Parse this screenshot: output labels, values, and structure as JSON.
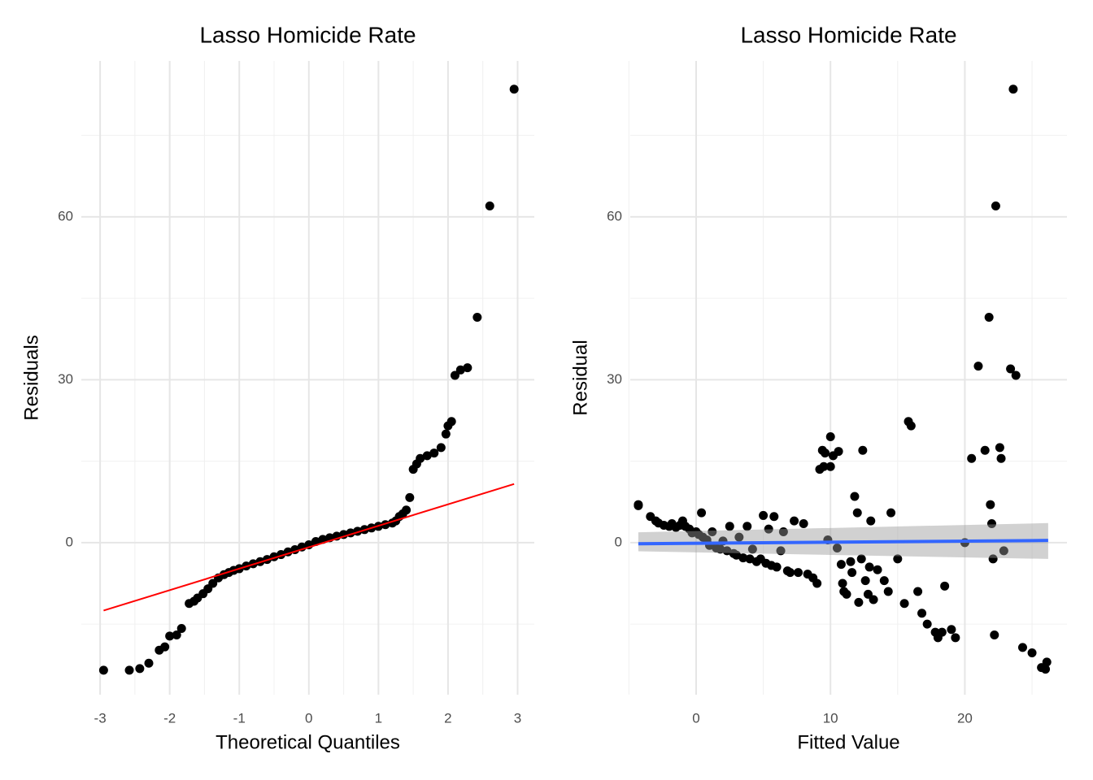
{
  "chart_data": [
    {
      "type": "scatter",
      "title": "Lasso Homicide Rate",
      "x_label": "Theoretical Quantiles",
      "y_label": "Residuals",
      "xlim": [
        -3.27,
        3.24
      ],
      "ylim": [
        -28,
        88.7
      ],
      "xticks": [
        -3,
        -2,
        -1,
        0,
        1,
        2,
        3
      ],
      "yticks": [
        0,
        30,
        60
      ],
      "xminor": [
        -2.5,
        -1.5,
        -0.5,
        0.5,
        1.5,
        2.5
      ],
      "yminor": [
        -15,
        15,
        45,
        75
      ],
      "grid": true,
      "points": {
        "color": "#000000",
        "x": [
          -2.95,
          -2.58,
          -2.43,
          -2.3,
          -2.15,
          -2.07,
          -2.0,
          -1.9,
          -1.83,
          -1.72,
          -1.65,
          -1.6,
          -1.52,
          -1.45,
          -1.38,
          -1.3,
          -1.22,
          -1.15,
          -1.08,
          -1.0,
          -0.9,
          -0.8,
          -0.7,
          -0.6,
          -0.5,
          -0.4,
          -0.3,
          -0.2,
          -0.1,
          0.0,
          0.1,
          0.2,
          0.3,
          0.4,
          0.5,
          0.6,
          0.7,
          0.8,
          0.9,
          1.0,
          1.1,
          1.2,
          1.25,
          1.3,
          1.35,
          1.4,
          1.45,
          1.5,
          1.55,
          1.6,
          1.7,
          1.8,
          1.9,
          1.97,
          2.0,
          2.05,
          2.1,
          2.18,
          2.28,
          2.42,
          2.6,
          2.95
        ],
        "values": [
          -23.5,
          -23.5,
          -23.2,
          -22.2,
          -19.8,
          -19.2,
          -17.2,
          -17.0,
          -15.8,
          -11.2,
          -10.8,
          -10.2,
          -9.4,
          -8.5,
          -7.5,
          -6.5,
          -5.9,
          -5.5,
          -5.1,
          -4.8,
          -4.3,
          -3.9,
          -3.5,
          -3.1,
          -2.6,
          -2.2,
          -1.7,
          -1.3,
          -0.8,
          -0.4,
          0.2,
          0.6,
          0.9,
          1.2,
          1.5,
          1.8,
          2.1,
          2.4,
          2.7,
          3.0,
          3.3,
          3.6,
          4.0,
          4.8,
          5.3,
          6.0,
          8.3,
          13.5,
          14.5,
          15.5,
          16.0,
          16.5,
          17.5,
          20.0,
          21.5,
          22.3,
          30.8,
          31.8,
          32.2,
          41.5,
          62.0,
          83.5
        ]
      },
      "line": {
        "color": "#ff0000",
        "x": [
          -2.95,
          2.95
        ],
        "values": [
          -12.5,
          10.8
        ]
      }
    },
    {
      "type": "scatter",
      "title": "Lasso Homicide Rate",
      "x_label": "Fitted Value",
      "y_label": "Residual",
      "xlim": [
        -4.9,
        27.6
      ],
      "ylim": [
        -28,
        88.7
      ],
      "xticks": [
        0,
        10,
        20
      ],
      "yticks": [
        0,
        30,
        60
      ],
      "xminor": [
        -5,
        5,
        15,
        25
      ],
      "yminor": [
        -15,
        15,
        45,
        75
      ],
      "grid": true,
      "points": {
        "color": "#000000",
        "x": [
          -4.3,
          -4.3,
          -3.4,
          -3,
          -2.8,
          -2.4,
          -2,
          -1.8,
          -1.5,
          -1.2,
          -1,
          -0.8,
          -0.5,
          -0.3,
          0,
          0.2,
          0.4,
          0.5,
          0.8,
          1,
          1.2,
          1.5,
          1.8,
          2,
          2.3,
          2.5,
          2.8,
          3,
          3.2,
          3.5,
          3.8,
          4,
          4.2,
          4.5,
          4.8,
          5,
          5.2,
          5.4,
          5.6,
          5.8,
          6,
          6.3,
          6.5,
          6.8,
          7,
          7.3,
          7.6,
          8,
          8.3,
          8.7,
          9,
          9.2,
          9.4,
          9.5,
          9.6,
          9.8,
          10,
          10,
          10.2,
          10.5,
          10.6,
          10.8,
          10.9,
          11,
          11.2,
          11.5,
          11.6,
          11.8,
          12,
          12.1,
          12.3,
          12.4,
          12.6,
          12.8,
          12.9,
          13,
          13.2,
          13.5,
          14,
          14.3,
          14.5,
          15,
          15.5,
          15.8,
          16,
          16.5,
          16.8,
          17.2,
          17.8,
          18,
          18.3,
          18.5,
          19,
          19.3,
          20,
          20.5,
          21,
          21.5,
          21.8,
          21.9,
          22,
          22.1,
          22.2,
          22.3,
          22.6,
          22.7,
          22.9,
          23.4,
          23.6,
          23.8,
          24.3,
          25,
          25.7,
          26,
          26.1
        ],
        "values": [
          6.8,
          7,
          4.8,
          4,
          3.6,
          3.2,
          3,
          3.5,
          2.8,
          3.2,
          4,
          3,
          2.5,
          1.8,
          2,
          1.5,
          5.5,
          1,
          0.5,
          -0.5,
          2,
          -1,
          -1.2,
          0.3,
          -1.5,
          3,
          -2,
          -2.3,
          1,
          -2.8,
          3,
          -3,
          -1.2,
          -3.5,
          -3,
          5,
          -3.8,
          2.5,
          -4.2,
          4.8,
          -4.5,
          -1.5,
          2,
          -5.2,
          -5.5,
          4,
          -5.5,
          3.5,
          -5.8,
          -6.5,
          -7.5,
          13.5,
          17,
          14,
          16.5,
          0.5,
          14,
          19.5,
          16,
          -1,
          16.8,
          -4,
          -7.5,
          -9,
          -9.5,
          -3.5,
          -5.5,
          8.5,
          5.5,
          -11,
          -3,
          17,
          -7,
          -9.5,
          -4.5,
          4,
          -10.5,
          -5,
          -7,
          -9,
          5.5,
          -3,
          -11.2,
          22.3,
          21.5,
          -9,
          -13,
          -15,
          -16.5,
          -17.5,
          -16.5,
          -8,
          -16,
          -17.5,
          0,
          15.5,
          32.5,
          17,
          41.5,
          7,
          3.5,
          -3,
          -17,
          62,
          17.5,
          15.5,
          -1.5,
          32,
          83.5,
          30.8,
          -19.3,
          -20.3,
          -23,
          -23.3,
          -22
        ]
      },
      "band": {
        "color": "#999999",
        "x": [
          -4.3,
          26.2
        ],
        "lower": [
          -1.6,
          -3.0
        ],
        "upper": [
          1.9,
          3.6
        ]
      },
      "line": {
        "color": "#3366ff",
        "x": [
          -4.3,
          26.2
        ],
        "values": [
          -0.2,
          0.4
        ]
      }
    }
  ]
}
